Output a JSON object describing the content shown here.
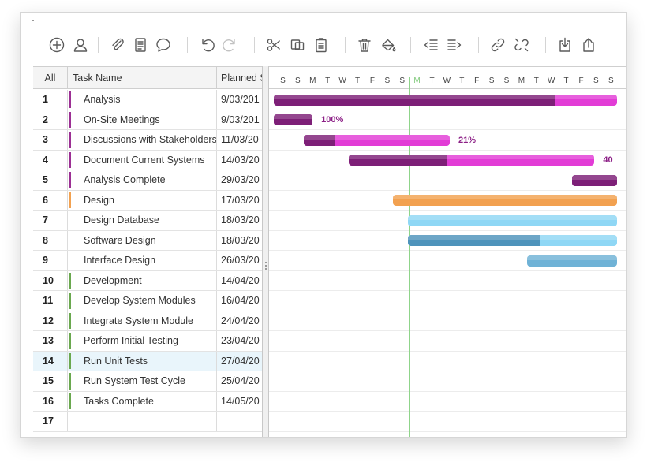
{
  "colors": {
    "purple": "#9c2f94",
    "purple_progress": "#7d1f77",
    "magenta": "#e23cd6",
    "orange": "#f2a150",
    "light_blue": "#8fd7f5",
    "blue": "#6fb2d6",
    "blue_progress": "#4e93bb",
    "green": "#6aa84f",
    "today_green": "#8fd48a"
  },
  "toolbar": {
    "buttons": [
      {
        "name": "add-task-button",
        "icon": "plus-circle-icon",
        "disabled": false
      },
      {
        "name": "assign-user-button",
        "icon": "user-icon",
        "disabled": false
      },
      {
        "name": "attach-button",
        "icon": "paperclip-icon",
        "disabled": false
      },
      {
        "name": "notes-button",
        "icon": "document-icon",
        "disabled": false
      },
      {
        "name": "comment-button",
        "icon": "comment-bubble-icon",
        "disabled": false
      },
      {
        "name": "undo-button",
        "icon": "undo-icon",
        "disabled": false
      },
      {
        "name": "redo-button",
        "icon": "redo-icon",
        "disabled": true
      },
      {
        "name": "cut-button",
        "icon": "scissors-icon",
        "disabled": false
      },
      {
        "name": "copy-button",
        "icon": "copy-icon",
        "disabled": false
      },
      {
        "name": "paste-button",
        "icon": "clipboard-icon",
        "disabled": false
      },
      {
        "name": "delete-button",
        "icon": "trash-icon",
        "disabled": false
      },
      {
        "name": "fill-color-button",
        "icon": "paint-bucket-icon",
        "disabled": false
      },
      {
        "name": "outdent-button",
        "icon": "outdent-icon",
        "disabled": false
      },
      {
        "name": "indent-button",
        "icon": "indent-icon",
        "disabled": false
      },
      {
        "name": "link-button",
        "icon": "link-icon",
        "disabled": false
      },
      {
        "name": "unlink-button",
        "icon": "unlink-icon",
        "disabled": false
      },
      {
        "name": "import-button",
        "icon": "import-icon",
        "disabled": false
      },
      {
        "name": "export-button",
        "icon": "export-icon",
        "disabled": false
      }
    ]
  },
  "grid": {
    "header": {
      "all": "All",
      "task_name": "Task Name",
      "planned_start": "Planned S"
    },
    "rows": [
      {
        "id": "1",
        "name": "Analysis",
        "date": "9/03/201",
        "marker": "purple"
      },
      {
        "id": "2",
        "name": "On-Site Meetings",
        "date": "9/03/201",
        "marker": "purple"
      },
      {
        "id": "3",
        "name": "Discussions with Stakeholders",
        "date": "11/03/20",
        "marker": "purple"
      },
      {
        "id": "4",
        "name": "Document Current Systems",
        "date": "14/03/20",
        "marker": "purple"
      },
      {
        "id": "5",
        "name": "Analysis Complete",
        "date": "29/03/20",
        "marker": "purple"
      },
      {
        "id": "6",
        "name": "Design",
        "date": "17/03/20",
        "marker": "orange"
      },
      {
        "id": "7",
        "name": "Design Database",
        "date": "18/03/20",
        "marker": ""
      },
      {
        "id": "8",
        "name": "Software Design",
        "date": "18/03/20",
        "marker": ""
      },
      {
        "id": "9",
        "name": "Interface Design",
        "date": "26/03/20",
        "marker": ""
      },
      {
        "id": "10",
        "name": "Development",
        "date": "14/04/20",
        "marker": "green"
      },
      {
        "id": "11",
        "name": "Develop System Modules",
        "date": "16/04/20",
        "marker": "green"
      },
      {
        "id": "12",
        "name": "Integrate System Module",
        "date": "24/04/20",
        "marker": "green"
      },
      {
        "id": "13",
        "name": "Perform Initial Testing",
        "date": "23/04/20",
        "marker": "green"
      },
      {
        "id": "14",
        "name": "Run Unit Tests",
        "date": "27/04/20",
        "marker": "green",
        "selected": true
      },
      {
        "id": "15",
        "name": "Run System Test Cycle",
        "date": "25/04/20",
        "marker": "green"
      },
      {
        "id": "16",
        "name": "Tasks Complete",
        "date": "14/05/20",
        "marker": "green"
      },
      {
        "id": "17",
        "name": "",
        "date": "",
        "marker": ""
      }
    ]
  },
  "timeline": {
    "days": [
      "S",
      "S",
      "M",
      "T",
      "W",
      "T",
      "F",
      "S",
      "S",
      "M",
      "T",
      "W",
      "T",
      "F",
      "S",
      "S",
      "M",
      "T",
      "W",
      "T",
      "F",
      "S",
      "S"
    ],
    "today_index": 9,
    "bars": [
      {
        "row": 1,
        "start": 0,
        "end": 23,
        "progress": 0.82,
        "color": "magenta",
        "progress_color": "purple_progress"
      },
      {
        "row": 2,
        "start": 0,
        "end": 2.6,
        "progress": 1.0,
        "color": "purple",
        "progress_color": "purple_progress",
        "label": "100%"
      },
      {
        "row": 3,
        "start": 2,
        "end": 11.8,
        "progress": 0.21,
        "color": "magenta",
        "progress_color": "purple_progress",
        "label": "21%"
      },
      {
        "row": 4,
        "start": 5,
        "end": 21.5,
        "progress": 0.4,
        "color": "magenta",
        "progress_color": "purple_progress",
        "label": "40"
      },
      {
        "row": 5,
        "start": 20,
        "end": 23,
        "progress": 1.0,
        "color": "purple",
        "progress_color": "purple_progress"
      },
      {
        "row": 6,
        "start": 8,
        "end": 23,
        "progress": 0,
        "color": "orange",
        "progress_color": "orange"
      },
      {
        "row": 7,
        "start": 9,
        "end": 23,
        "progress": 0,
        "color": "light_blue",
        "progress_color": "light_blue"
      },
      {
        "row": 8,
        "start": 9,
        "end": 23,
        "progress": 0.63,
        "color": "light_blue",
        "progress_color": "blue_progress"
      },
      {
        "row": 9,
        "start": 17,
        "end": 23,
        "progress": 0,
        "color": "blue",
        "progress_color": "blue"
      }
    ]
  }
}
